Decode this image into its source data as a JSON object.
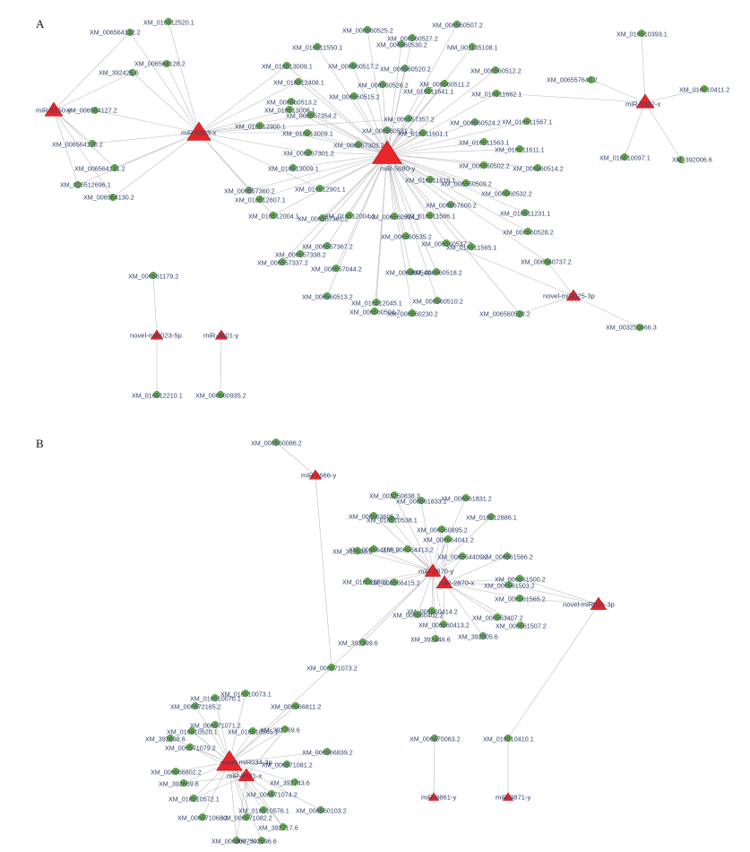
{
  "panels": [
    {
      "label": "A",
      "mirnas": [
        {
          "id": "m1",
          "label": "miR-5150-y"
        },
        {
          "id": "m2",
          "label": "miR-5303-x"
        },
        {
          "id": "m3",
          "label": "miR-5080-y"
        },
        {
          "id": "m4",
          "label": "miR-5322-x"
        },
        {
          "id": "m5",
          "label": "novel-miR025-3p"
        },
        {
          "id": "m6",
          "label": "novel-miR023-5p"
        },
        {
          "id": "m7",
          "label": "miR-3601-y"
        }
      ],
      "targets": [
        {
          "id": "a1",
          "label": "XM_016512520.1"
        },
        {
          "id": "a2",
          "label": "XM_006564132.2"
        },
        {
          "id": "a3",
          "label": "XM_006564128.2"
        },
        {
          "id": "a4",
          "label": "XM_392425.6"
        },
        {
          "id": "a5",
          "label": "XM_006564127.2"
        },
        {
          "id": "a6",
          "label": "XM_006564120.2"
        },
        {
          "id": "a7",
          "label": "XM_006564131.2"
        },
        {
          "id": "a8",
          "label": "XM_016512696.1"
        },
        {
          "id": "a9",
          "label": "XM_006564130.2"
        },
        {
          "id": "b1",
          "label": "XM_006560507.2"
        },
        {
          "id": "b2",
          "label": "XM_006560525.2"
        },
        {
          "id": "b3",
          "label": "XM_006560527.2"
        },
        {
          "id": "b4",
          "label": "XM_016511550.1"
        },
        {
          "id": "b5",
          "label": "XM_006560530.2"
        },
        {
          "id": "b6",
          "label": "NM_001135108.1"
        },
        {
          "id": "b7",
          "label": "XM_016513009.1"
        },
        {
          "id": "b8",
          "label": "XM_006560517.2"
        },
        {
          "id": "b9",
          "label": "XM_006560520.2"
        },
        {
          "id": "c1",
          "label": "XM_006560512.2"
        },
        {
          "id": "c2",
          "label": "XM_006560511.2"
        },
        {
          "id": "c3",
          "label": "XM_016512408.1"
        },
        {
          "id": "c4",
          "label": "XM_006560526.2"
        },
        {
          "id": "c5",
          "label": "XM_016511641.1"
        },
        {
          "id": "c6",
          "label": "XM_006560515.2"
        },
        {
          "id": "c7",
          "label": "XM_006560513.2"
        },
        {
          "id": "c8",
          "label": "XM_016511662.1"
        },
        {
          "id": "c9",
          "label": "XM_016513008.1"
        },
        {
          "id": "d1",
          "label": "XM_006557354.2"
        },
        {
          "id": "d2",
          "label": "XM_006557357.2"
        },
        {
          "id": "d3",
          "label": "XM_016512900.1"
        },
        {
          "id": "d4",
          "label": "XM_016513009.1"
        },
        {
          "id": "d5",
          "label": "XM_006560521.2"
        },
        {
          "id": "d6",
          "label": "XM_016511601.1"
        },
        {
          "id": "d7",
          "label": "XM_006560524.2"
        },
        {
          "id": "d8",
          "label": "XM_006557303.2"
        },
        {
          "id": "d9",
          "label": "XM_016511567.1"
        },
        {
          "id": "e1",
          "label": "XM_016511563.1"
        },
        {
          "id": "e2",
          "label": "XM_016511611.1"
        },
        {
          "id": "e3",
          "label": "XM_006557301.2"
        },
        {
          "id": "e4",
          "label": "XM_016513009.1"
        },
        {
          "id": "e5",
          "label": "XM_006560502.2"
        },
        {
          "id": "e6",
          "label": "XM_006560514.2"
        },
        {
          "id": "e7",
          "label": "XM_006557360.2"
        },
        {
          "id": "e8",
          "label": "XM_016512901.1"
        },
        {
          "id": "e9",
          "label": "XM_016511616.1"
        },
        {
          "id": "f1",
          "label": "XM_006560509.2"
        },
        {
          "id": "f2",
          "label": "XM_016512607.1"
        },
        {
          "id": "f3",
          "label": "XM_006560532.2"
        },
        {
          "id": "f4",
          "label": "XM_016511231.1"
        },
        {
          "id": "f5",
          "label": "XM_016512004.1"
        },
        {
          "id": "f6",
          "label": "XM_016512004.1"
        },
        {
          "id": "f7",
          "label": "XM_006557600.2"
        },
        {
          "id": "f8",
          "label": "XM_006560534.2"
        },
        {
          "id": "f9",
          "label": "XM_006557361.2"
        },
        {
          "id": "g1",
          "label": "XM_006557367.2"
        },
        {
          "id": "g2",
          "label": "XM_006560528.2"
        },
        {
          "id": "g3",
          "label": "XM_006557338.2"
        },
        {
          "id": "g4",
          "label": "XM_006560537.2"
        },
        {
          "id": "g5",
          "label": "XM_016511565.1"
        },
        {
          "id": "g6",
          "label": "XM_006557337.2"
        },
        {
          "id": "g7",
          "label": "XM_016511586.1"
        },
        {
          "id": "g8",
          "label": "XM_006557044.2"
        },
        {
          "id": "g9",
          "label": "XM_006560540.2"
        },
        {
          "id": "h1",
          "label": "XM_006560518.2"
        },
        {
          "id": "h2",
          "label": "XM_006560513.2"
        },
        {
          "id": "h3",
          "label": "XM_016512045.1"
        },
        {
          "id": "h4",
          "label": "XM_006560510.2"
        },
        {
          "id": "h5",
          "label": "XM_006560230.2"
        },
        {
          "id": "h6",
          "label": "XM_006560535.2"
        },
        {
          "id": "h7",
          "label": "XM_006560504.2"
        },
        {
          "id": "h8",
          "label": "XM_006560737.2"
        },
        {
          "id": "h9",
          "label": "XM_006560520.2"
        },
        {
          "id": "i1",
          "label": "XM_016510393.1"
        },
        {
          "id": "i2",
          "label": "XM_006557640.2"
        },
        {
          "id": "i3",
          "label": "XM_016510411.2"
        },
        {
          "id": "i4",
          "label": "XM_016510097.1"
        },
        {
          "id": "i5",
          "label": "XM_392006.6"
        },
        {
          "id": "i6",
          "label": "XM_003250966.3"
        },
        {
          "id": "i7",
          "label": "XM_006561179.2"
        },
        {
          "id": "i8",
          "label": "XM_016512210.1"
        },
        {
          "id": "i9",
          "label": "XM_006560935.2"
        }
      ]
    },
    {
      "label": "B",
      "mirnas": [
        {
          "id": "n1",
          "label": "miR-7666-y"
        },
        {
          "id": "n2",
          "label": "miR-2870-y"
        },
        {
          "id": "n3",
          "label": "miR-2870-x"
        },
        {
          "id": "n4",
          "label": "novel-miR025-3p"
        },
        {
          "id": "n5",
          "label": "novel-miR034-3p"
        },
        {
          "id": "n6",
          "label": "miR-9581-x"
        },
        {
          "id": "n7",
          "label": "miR-3861-y"
        },
        {
          "id": "n8",
          "label": "miR-3871-y"
        }
      ],
      "targets": [
        {
          "id": "p1",
          "label": "XM_006560086.2"
        },
        {
          "id": "p2",
          "label": "XM_003250838.3"
        },
        {
          "id": "p3",
          "label": "XM_006561831.2"
        },
        {
          "id": "p4",
          "label": "XM_006561833.2"
        },
        {
          "id": "p5",
          "label": "XM_016512886.1"
        },
        {
          "id": "p6",
          "label": "XM_006560895.2"
        },
        {
          "id": "p7",
          "label": "XM_016510538.1"
        },
        {
          "id": "p8",
          "label": "XM_006564041.2"
        },
        {
          "id": "p9",
          "label": "XM_006563605.2"
        },
        {
          "id": "q1",
          "label": "XM_006564103.2"
        },
        {
          "id": "q2",
          "label": "XM_006564413.2"
        },
        {
          "id": "q3",
          "label": "XM_392533.6"
        },
        {
          "id": "q4",
          "label": "XM_006564409.2"
        },
        {
          "id": "q5",
          "label": "XM_006561566.2"
        },
        {
          "id": "q6",
          "label": "XM_006561500.2"
        },
        {
          "id": "q7",
          "label": "XM_016510302.1"
        },
        {
          "id": "q8",
          "label": "XM_006566415.2"
        },
        {
          "id": "q9",
          "label": "XM_006561503.2"
        },
        {
          "id": "r1",
          "label": "XM_006561565.2"
        },
        {
          "id": "r2",
          "label": "XM_006560414.2"
        },
        {
          "id": "r3",
          "label": "XM_006563407.2"
        },
        {
          "id": "r4",
          "label": "XM_006560402.2"
        },
        {
          "id": "r5",
          "label": "XM_006560413.2"
        },
        {
          "id": "r6",
          "label": "XM_006561507.2"
        },
        {
          "id": "r7",
          "label": "XM_392505.6"
        },
        {
          "id": "r8",
          "label": "XM_392446.6"
        },
        {
          "id": "r9",
          "label": "XM_392399.6"
        },
        {
          "id": "s1",
          "label": "XM_006571073.2"
        },
        {
          "id": "s2",
          "label": "XM_016510073.1"
        },
        {
          "id": "s3",
          "label": "XM_016510070.1"
        },
        {
          "id": "s4",
          "label": "XM_006572165.2"
        },
        {
          "id": "s5",
          "label": "XM_006566811.2"
        },
        {
          "id": "s6",
          "label": "XM_006571071.2"
        },
        {
          "id": "s7",
          "label": "XM_016510520.1"
        },
        {
          "id": "s8",
          "label": "XM_016510565.1"
        },
        {
          "id": "s9",
          "label": "XM_392769.6"
        },
        {
          "id": "t1",
          "label": "XM_392638.6"
        },
        {
          "id": "t2",
          "label": "XM_006571079.2"
        },
        {
          "id": "t3",
          "label": "XM_006566839.2"
        },
        {
          "id": "t4",
          "label": "XM_006571081.2"
        },
        {
          "id": "t5",
          "label": "XM_006566802.2"
        },
        {
          "id": "t6",
          "label": "XM_392743.6"
        },
        {
          "id": "t7",
          "label": "XM_392669.6"
        },
        {
          "id": "t8",
          "label": "XM_006571074.2"
        },
        {
          "id": "t9",
          "label": "XM_016510572.1"
        },
        {
          "id": "u1",
          "label": "XM_006560103.2"
        },
        {
          "id": "u2",
          "label": "XM_006571068.2"
        },
        {
          "id": "u3",
          "label": "XM_006571082.2"
        },
        {
          "id": "u4",
          "label": "XM_016510576.1"
        },
        {
          "id": "u5",
          "label": "XM_392717.6"
        },
        {
          "id": "u6",
          "label": "XM_006560750.2"
        },
        {
          "id": "u7",
          "label": "XM_392696.6"
        },
        {
          "id": "u8",
          "label": "XM_006570063.2"
        },
        {
          "id": "u9",
          "label": "XM_016510410.1"
        }
      ]
    }
  ],
  "edges": [
    [
      "m1",
      "a4"
    ],
    [
      "m1",
      "a5"
    ],
    [
      "m1",
      "a6"
    ],
    [
      "m1",
      "a7"
    ],
    [
      "m1",
      "a8"
    ],
    [
      "m1",
      "a9"
    ],
    [
      "m1",
      "a2"
    ],
    [
      "m2",
      "a1"
    ],
    [
      "m2",
      "a2"
    ],
    [
      "m2",
      "a3"
    ],
    [
      "m2",
      "a4"
    ],
    [
      "m2",
      "a5"
    ],
    [
      "m2",
      "a6"
    ],
    [
      "m2",
      "a7"
    ],
    [
      "m2",
      "a8"
    ],
    [
      "m2",
      "a9"
    ],
    [
      "m2",
      "b7"
    ],
    [
      "m2",
      "c3"
    ],
    [
      "m2",
      "c9"
    ],
    [
      "m2",
      "d3"
    ],
    [
      "m2",
      "d4"
    ],
    [
      "m2",
      "d1"
    ],
    [
      "m2",
      "d2"
    ],
    [
      "m2",
      "e3"
    ],
    [
      "m2",
      "e7"
    ],
    [
      "m2",
      "e8"
    ],
    [
      "m2",
      "f5"
    ],
    [
      "m3",
      "b1"
    ],
    [
      "m3",
      "b2"
    ],
    [
      "m3",
      "b3"
    ],
    [
      "m3",
      "b4"
    ],
    [
      "m3",
      "b5"
    ],
    [
      "m3",
      "b6"
    ],
    [
      "m3",
      "b7"
    ],
    [
      "m3",
      "b8"
    ],
    [
      "m3",
      "b9"
    ],
    [
      "m3",
      "c1"
    ],
    [
      "m3",
      "c2"
    ],
    [
      "m3",
      "c3"
    ],
    [
      "m3",
      "c4"
    ],
    [
      "m3",
      "c5"
    ],
    [
      "m3",
      "c6"
    ],
    [
      "m3",
      "c7"
    ],
    [
      "m3",
      "c8"
    ],
    [
      "m3",
      "c9"
    ],
    [
      "m3",
      "d1"
    ],
    [
      "m3",
      "d2"
    ],
    [
      "m3",
      "d3"
    ],
    [
      "m3",
      "d4"
    ],
    [
      "m3",
      "d5"
    ],
    [
      "m3",
      "d6"
    ],
    [
      "m3",
      "d7"
    ],
    [
      "m3",
      "d8"
    ],
    [
      "m3",
      "d9"
    ],
    [
      "m3",
      "e1"
    ],
    [
      "m3",
      "e2"
    ],
    [
      "m3",
      "e3"
    ],
    [
      "m3",
      "e4"
    ],
    [
      "m3",
      "e5"
    ],
    [
      "m3",
      "e6"
    ],
    [
      "m3",
      "e7"
    ],
    [
      "m3",
      "e8"
    ],
    [
      "m3",
      "e9"
    ],
    [
      "m3",
      "f1"
    ],
    [
      "m3",
      "f2"
    ],
    [
      "m3",
      "f3"
    ],
    [
      "m3",
      "f4"
    ],
    [
      "m3",
      "f5"
    ],
    [
      "m3",
      "f6"
    ],
    [
      "m3",
      "f7"
    ],
    [
      "m3",
      "f8"
    ],
    [
      "m3",
      "f9"
    ],
    [
      "m3",
      "g1"
    ],
    [
      "m3",
      "g2"
    ],
    [
      "m3",
      "g3"
    ],
    [
      "m3",
      "g4"
    ],
    [
      "m3",
      "g5"
    ],
    [
      "m3",
      "g6"
    ],
    [
      "m3",
      "g7"
    ],
    [
      "m3",
      "g8"
    ],
    [
      "m3",
      "g9"
    ],
    [
      "m3",
      "h1"
    ],
    [
      "m3",
      "h2"
    ],
    [
      "m3",
      "h3"
    ],
    [
      "m3",
      "h4"
    ],
    [
      "m3",
      "h5"
    ],
    [
      "m3",
      "h6"
    ],
    [
      "m3",
      "h7"
    ],
    [
      "m3",
      "h8"
    ],
    [
      "m3",
      "h9"
    ],
    [
      "m4",
      "i1"
    ],
    [
      "m4",
      "i2"
    ],
    [
      "m4",
      "i3"
    ],
    [
      "m4",
      "i4"
    ],
    [
      "m4",
      "i5"
    ],
    [
      "m4",
      "c8"
    ],
    [
      "m5",
      "h8"
    ],
    [
      "m5",
      "h9"
    ],
    [
      "m5",
      "i6"
    ],
    [
      "m5",
      "g4"
    ],
    [
      "m6",
      "i7"
    ],
    [
      "m6",
      "i8"
    ],
    [
      "m7",
      "i9"
    ],
    [
      "n1",
      "p1"
    ],
    [
      "n1",
      "s1"
    ],
    [
      "n2",
      "p2"
    ],
    [
      "n2",
      "p3"
    ],
    [
      "n2",
      "p4"
    ],
    [
      "n2",
      "p5"
    ],
    [
      "n2",
      "p6"
    ],
    [
      "n2",
      "p7"
    ],
    [
      "n2",
      "p8"
    ],
    [
      "n2",
      "p9"
    ],
    [
      "n2",
      "q1"
    ],
    [
      "n2",
      "q2"
    ],
    [
      "n2",
      "q3"
    ],
    [
      "n2",
      "q4"
    ],
    [
      "n2",
      "q7"
    ],
    [
      "n2",
      "q8"
    ],
    [
      "n2",
      "r2"
    ],
    [
      "n2",
      "r4"
    ],
    [
      "n2",
      "r5"
    ],
    [
      "n2",
      "r8"
    ],
    [
      "n2",
      "r9"
    ],
    [
      "n2",
      "s1"
    ],
    [
      "n3",
      "p6"
    ],
    [
      "n3",
      "p8"
    ],
    [
      "n3",
      "q4"
    ],
    [
      "n3",
      "q5"
    ],
    [
      "n3",
      "q6"
    ],
    [
      "n3",
      "q9"
    ],
    [
      "n3",
      "r1"
    ],
    [
      "n3",
      "r3"
    ],
    [
      "n3",
      "r6"
    ],
    [
      "n3",
      "r7"
    ],
    [
      "n3",
      "q2"
    ],
    [
      "n3",
      "r5"
    ],
    [
      "n4",
      "q6"
    ],
    [
      "n4",
      "r1"
    ],
    [
      "n4",
      "u9"
    ],
    [
      "n4",
      "q9"
    ],
    [
      "n5",
      "s1"
    ],
    [
      "n5",
      "s2"
    ],
    [
      "n5",
      "s3"
    ],
    [
      "n5",
      "s4"
    ],
    [
      "n5",
      "s5"
    ],
    [
      "n5",
      "s6"
    ],
    [
      "n5",
      "s7"
    ],
    [
      "n5",
      "s8"
    ],
    [
      "n5",
      "s9"
    ],
    [
      "n5",
      "t1"
    ],
    [
      "n5",
      "t2"
    ],
    [
      "n5",
      "t3"
    ],
    [
      "n5",
      "t4"
    ],
    [
      "n5",
      "t5"
    ],
    [
      "n5",
      "t6"
    ],
    [
      "n5",
      "t7"
    ],
    [
      "n5",
      "t8"
    ],
    [
      "n5",
      "t9"
    ],
    [
      "n5",
      "u1"
    ],
    [
      "n5",
      "u2"
    ],
    [
      "n5",
      "u3"
    ],
    [
      "n5",
      "u4"
    ],
    [
      "n5",
      "u5"
    ],
    [
      "n5",
      "u6"
    ],
    [
      "n5",
      "u7"
    ],
    [
      "n6",
      "s7"
    ],
    [
      "n6",
      "t2"
    ],
    [
      "n6",
      "t7"
    ],
    [
      "n6",
      "u3"
    ],
    [
      "n6",
      "u5"
    ],
    [
      "n6",
      "u6"
    ],
    [
      "n6",
      "t9"
    ],
    [
      "n6",
      "s9"
    ],
    [
      "n7",
      "u8"
    ],
    [
      "n8",
      "u9"
    ]
  ]
}
